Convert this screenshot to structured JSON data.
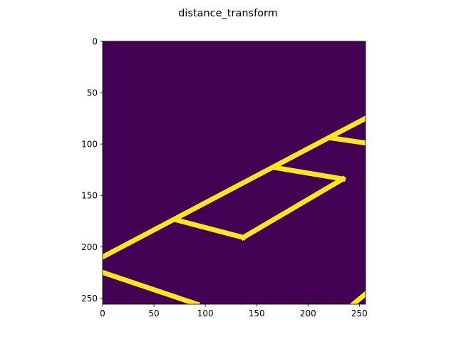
{
  "chart_data": {
    "type": "heatmap",
    "title": "distance_transform",
    "xlabel": "",
    "ylabel": "",
    "xlim": [
      0,
      256
    ],
    "ylim": [
      256,
      0
    ],
    "xticks": [
      0,
      50,
      100,
      150,
      200,
      250
    ],
    "yticks": [
      0,
      50,
      100,
      150,
      200,
      250
    ],
    "xtick_labels": [
      "0",
      "50",
      "100",
      "150",
      "200",
      "250"
    ],
    "ytick_labels": [
      "0",
      "50",
      "100",
      "150",
      "200",
      "250"
    ],
    "colormap": "viridis",
    "background_color": "#440154",
    "line_color": "#fde725",
    "grid": false,
    "segments": [
      {
        "x1": 0,
        "y1": 210,
        "x2": 256,
        "y2": 75
      },
      {
        "x1": 0,
        "y1": 225,
        "x2": 92,
        "y2": 256
      },
      {
        "x1": 72,
        "y1": 174,
        "x2": 137,
        "y2": 191
      },
      {
        "x1": 137,
        "y1": 191,
        "x2": 234,
        "y2": 134
      },
      {
        "x1": 234,
        "y1": 134,
        "x2": 168,
        "y2": 123
      },
      {
        "x1": 222,
        "y1": 94,
        "x2": 256,
        "y2": 99
      },
      {
        "x1": 244,
        "y1": 256,
        "x2": 256,
        "y2": 246
      }
    ]
  }
}
